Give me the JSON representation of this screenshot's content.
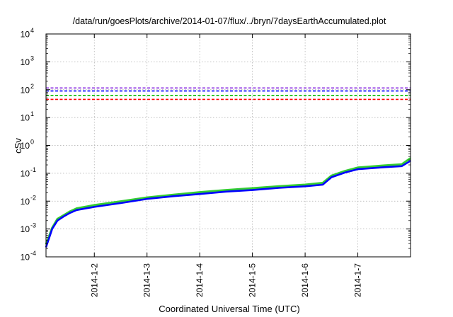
{
  "chart_data": {
    "type": "line",
    "title": "/data/run/goesPlots/archive/2014-01-07/flux/../bryn/7daysEarthAccumulated.plot",
    "xlabel": "Coordinated Universal Time (UTC)",
    "ylabel": "cSv",
    "yscale": "log",
    "ylim": [
      0.0001,
      10000
    ],
    "xlim": [
      "2014-01-01T02:00",
      "2014-01-08T00:00"
    ],
    "grid": true,
    "legend": "none",
    "x_ticks": [
      {
        "label": "2014-1-2",
        "x": "2014-01-02T00:00"
      },
      {
        "label": "2014-1-3",
        "x": "2014-01-03T00:00"
      },
      {
        "label": "2014-1-4",
        "x": "2014-01-04T00:00"
      },
      {
        "label": "2014-1-5",
        "x": "2014-01-05T00:00"
      },
      {
        "label": "2014-1-6",
        "x": "2014-01-06T00:00"
      },
      {
        "label": "2014-1-7",
        "x": "2014-01-07T00:00"
      }
    ],
    "y_ticks": [
      {
        "base": "10",
        "exp": "-4",
        "value": 0.0001
      },
      {
        "base": "10",
        "exp": "-3",
        "value": 0.001
      },
      {
        "base": "10",
        "exp": "-2",
        "value": 0.01
      },
      {
        "base": "10",
        "exp": "-1",
        "value": 0.1
      },
      {
        "base": "10",
        "exp": "0",
        "value": 1
      },
      {
        "base": "10",
        "exp": "1",
        "value": 10
      },
      {
        "base": "10",
        "exp": "2",
        "value": 100
      },
      {
        "base": "10",
        "exp": "3",
        "value": 1000
      },
      {
        "base": "10",
        "exp": "4",
        "value": 10000
      }
    ],
    "reference_lines": [
      {
        "value": 115,
        "color": "#8a2be2",
        "style": "dashed"
      },
      {
        "value": 90,
        "color": "#0000ff",
        "style": "dashed"
      },
      {
        "value": 62,
        "color": "#00bb00",
        "style": "dashed"
      },
      {
        "value": 45,
        "color": "#ff0000",
        "style": "dashed"
      }
    ],
    "series": [
      {
        "color": "#33cc33",
        "points": [
          [
            "2014-01-01T02:00",
            0.00028
          ],
          [
            "2014-01-01T04:48",
            0.0011
          ],
          [
            "2014-01-01T07:12",
            0.0023
          ],
          [
            "2014-01-01T10:00",
            0.0031
          ],
          [
            "2014-01-01T13:00",
            0.0043
          ],
          [
            "2014-01-01T16:00",
            0.0055
          ],
          [
            "2014-01-02T00:00",
            0.0072
          ],
          [
            "2014-01-02T12:00",
            0.0098
          ],
          [
            "2014-01-03T00:00",
            0.0135
          ],
          [
            "2014-01-03T12:00",
            0.017
          ],
          [
            "2014-01-04T00:00",
            0.021
          ],
          [
            "2014-01-04T12:00",
            0.025
          ],
          [
            "2014-01-05T00:00",
            0.029
          ],
          [
            "2014-01-05T12:00",
            0.034
          ],
          [
            "2014-01-06T00:00",
            0.039
          ],
          [
            "2014-01-06T08:00",
            0.045
          ],
          [
            "2014-01-06T12:00",
            0.082
          ],
          [
            "2014-01-06T18:00",
            0.12
          ],
          [
            "2014-01-07T00:00",
            0.16
          ],
          [
            "2014-01-07T12:00",
            0.19
          ],
          [
            "2014-01-07T20:00",
            0.21
          ],
          [
            "2014-01-08T00:00",
            0.35
          ]
        ]
      },
      {
        "color": "#0000ff",
        "points": [
          [
            "2014-01-01T02:00",
            0.00022
          ],
          [
            "2014-01-01T04:48",
            0.001
          ],
          [
            "2014-01-01T07:12",
            0.002
          ],
          [
            "2014-01-01T10:00",
            0.0028
          ],
          [
            "2014-01-01T13:00",
            0.0038
          ],
          [
            "2014-01-01T16:00",
            0.0048
          ],
          [
            "2014-01-02T00:00",
            0.0062
          ],
          [
            "2014-01-02T12:00",
            0.0085
          ],
          [
            "2014-01-03T00:00",
            0.012
          ],
          [
            "2014-01-03T12:00",
            0.015
          ],
          [
            "2014-01-04T00:00",
            0.018
          ],
          [
            "2014-01-04T12:00",
            0.022
          ],
          [
            "2014-01-05T00:00",
            0.025
          ],
          [
            "2014-01-05T12:00",
            0.03
          ],
          [
            "2014-01-06T00:00",
            0.034
          ],
          [
            "2014-01-06T08:00",
            0.039
          ],
          [
            "2014-01-06T12:00",
            0.072
          ],
          [
            "2014-01-06T18:00",
            0.105
          ],
          [
            "2014-01-07T00:00",
            0.14
          ],
          [
            "2014-01-07T12:00",
            0.165
          ],
          [
            "2014-01-07T20:00",
            0.18
          ],
          [
            "2014-01-08T00:00",
            0.28
          ]
        ]
      }
    ]
  }
}
